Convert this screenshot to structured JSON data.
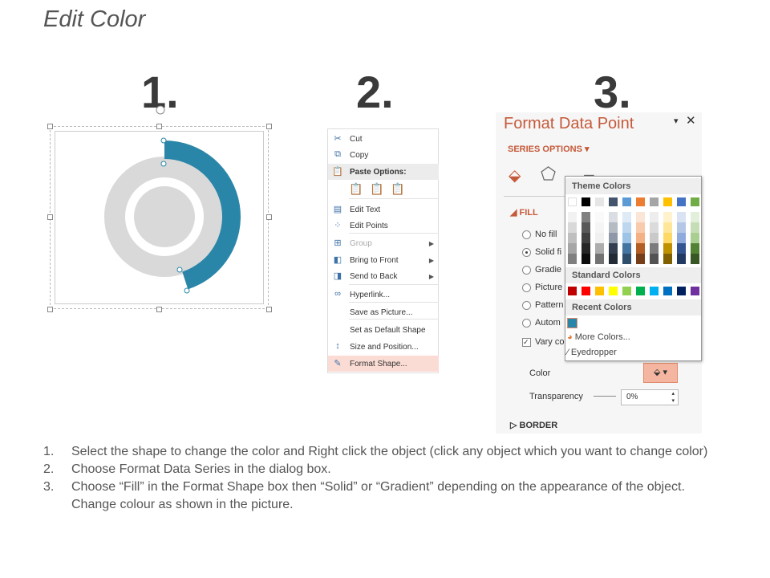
{
  "title": "Edit Color",
  "steps_numbers": [
    "1.",
    "2.",
    "3."
  ],
  "donut": {
    "accent": "#2a86a8",
    "gray": "#d9d9d9",
    "highlighted_fraction": 0.45
  },
  "context_menu": {
    "items": [
      {
        "label": "Cut",
        "icon": "scissors-icon"
      },
      {
        "label": "Copy",
        "icon": "copy-icon"
      },
      {
        "label": "Paste Options:",
        "icon": "paste-icon"
      },
      {
        "label": "Edit Text",
        "icon": "edit-text-icon"
      },
      {
        "label": "Edit Points",
        "icon": "edit-points-icon"
      },
      {
        "label": "Group",
        "icon": "group-icon",
        "disabled": true,
        "submenu": true
      },
      {
        "label": "Bring to Front",
        "icon": "bring-front-icon",
        "submenu": true
      },
      {
        "label": "Send to Back",
        "icon": "send-back-icon",
        "submenu": true
      },
      {
        "label": "Hyperlink...",
        "icon": "hyperlink-icon"
      },
      {
        "label": "Save as Picture...",
        "icon": ""
      },
      {
        "label": "Set as Default Shape",
        "icon": ""
      },
      {
        "label": "Size and Position...",
        "icon": "size-position-icon"
      },
      {
        "label": "Format Shape...",
        "icon": "format-shape-icon",
        "highlighted": true
      }
    ]
  },
  "panel": {
    "title": "Format Data Point",
    "series_options": "SERIES OPTIONS",
    "fill_header": "FILL",
    "options": [
      "No fill",
      "Solid fill",
      "Gradient fill",
      "Picture or texture fill",
      "Pattern fill",
      "Automatic"
    ],
    "options_visible": [
      "No fill",
      "Solid fi",
      "Gradie",
      "Picture",
      "Pattern",
      "Autom"
    ],
    "selected_option": "Solid fill",
    "vary_label": "Vary co",
    "vary_checked": true,
    "color_label": "Color",
    "transparency_label": "Transparency",
    "transparency_value": "0%",
    "border_header": "BORDER",
    "accent": "#c55a3a"
  },
  "color_popup": {
    "theme_header": "Theme Colors",
    "theme_colors": [
      "#ffffff",
      "#000000",
      "#e7e6e6",
      "#44546a",
      "#5b9bd5",
      "#ed7d31",
      "#a5a5a5",
      "#ffc000",
      "#4472c4",
      "#70ad47"
    ],
    "standard_header": "Standard Colors",
    "standard_colors": [
      "#c00000",
      "#ff0000",
      "#ffc000",
      "#ffff00",
      "#92d050",
      "#00b050",
      "#00b0f0",
      "#0070c0",
      "#002060",
      "#7030a0"
    ],
    "recent_header": "Recent Colors",
    "recent_colors": [
      "#2a86a8"
    ],
    "more_colors": "More Colors...",
    "eyedropper": "Eyedropper"
  },
  "instructions": [
    {
      "n": "1.",
      "text": "Select the shape to change the color and Right click the object (click any object which you want to change color)"
    },
    {
      "n": "2.",
      "text": "Choose Format Data Series in the dialog box."
    },
    {
      "n": "3.",
      "text": "Choose “Fill” in the Format Shape box then “Solid” or “Gradient” depending on the appearance of the object. Change colour as shown in the picture."
    }
  ]
}
